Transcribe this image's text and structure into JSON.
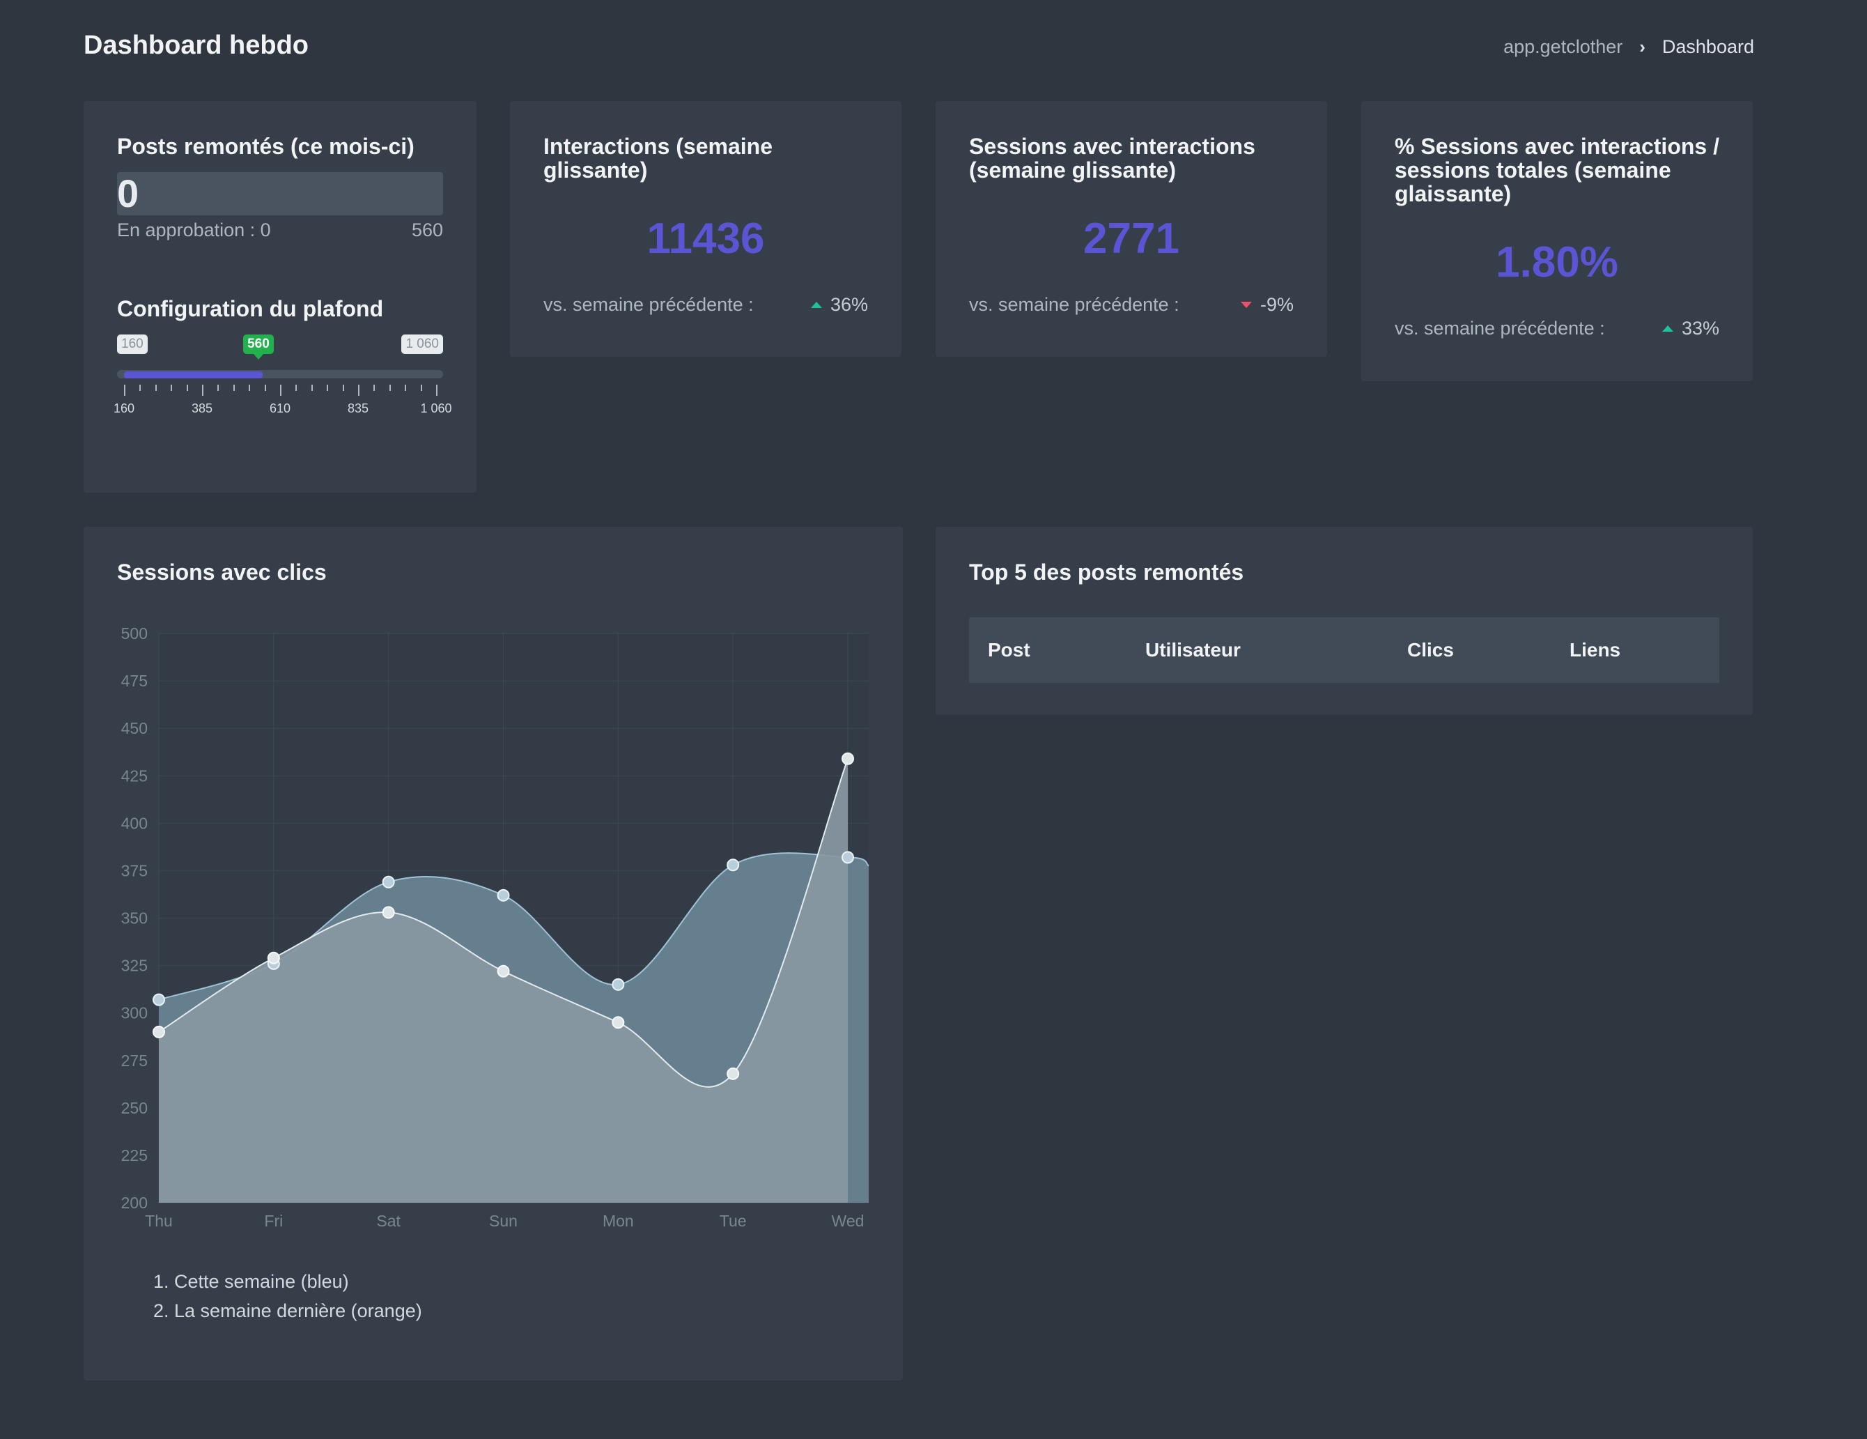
{
  "header": {
    "title": "Dashboard hebdo",
    "breadcrumb": {
      "root": "app.getclother",
      "separator": "›",
      "current": "Dashboard"
    }
  },
  "posts_card": {
    "title": "Posts remontés (ce mois-ci)",
    "value": "0",
    "approval_label": "En approbation : 0",
    "limit": "560",
    "plafond_title": "Configuration du plafond",
    "slider": {
      "min_label": "160",
      "max_label": "1 060",
      "current_label": "560",
      "min": 160,
      "max": 1060,
      "current": 560,
      "tick_labels": [
        "160",
        "385",
        "610",
        "835",
        "1 060"
      ]
    }
  },
  "kpis": {
    "interactions": {
      "title": "Interactions (semaine glissante)",
      "value": "11436",
      "compare_label": "vs. semaine précédente :",
      "delta": "36%",
      "trend": "up"
    },
    "sessions": {
      "title": "Sessions avec interactions (semaine glissante)",
      "value": "2771",
      "compare_label": "vs. semaine précédente :",
      "delta": "-9%",
      "trend": "down"
    },
    "percent": {
      "title": "% Sessions avec interactions / sessions totales (semaine glaissante)",
      "value": "1.80%",
      "compare_label": "vs. semaine précédente :",
      "delta": "33%",
      "trend": "up"
    }
  },
  "chart_card": {
    "title": "Sessions avec clics",
    "legend": [
      "1. Cette semaine (bleu)",
      "2. La semaine dernière (orange)"
    ]
  },
  "chart_data": {
    "type": "area",
    "title": "Sessions avec clics",
    "categories": [
      "Thu",
      "Fri",
      "Sat",
      "Sun",
      "Mon",
      "Tue",
      "Wed"
    ],
    "ylim": [
      200,
      500
    ],
    "y_ticks": [
      200,
      225,
      250,
      275,
      300,
      325,
      350,
      375,
      400,
      425,
      450,
      475,
      500
    ],
    "grid": true,
    "series": [
      {
        "name": "Cette semaine (bleu)",
        "color": "#6b8696",
        "values": [
          307,
          326,
          369,
          362,
          315,
          378,
          382
        ]
      },
      {
        "name": "La semaine dernière (orange)",
        "color": "#8a9ba4",
        "values": [
          290,
          329,
          353,
          322,
          295,
          268,
          434
        ]
      }
    ]
  },
  "top_card": {
    "title": "Top 5 des posts remontés",
    "columns": [
      "Post",
      "Utilisateur",
      "Clics",
      "Liens"
    ]
  }
}
